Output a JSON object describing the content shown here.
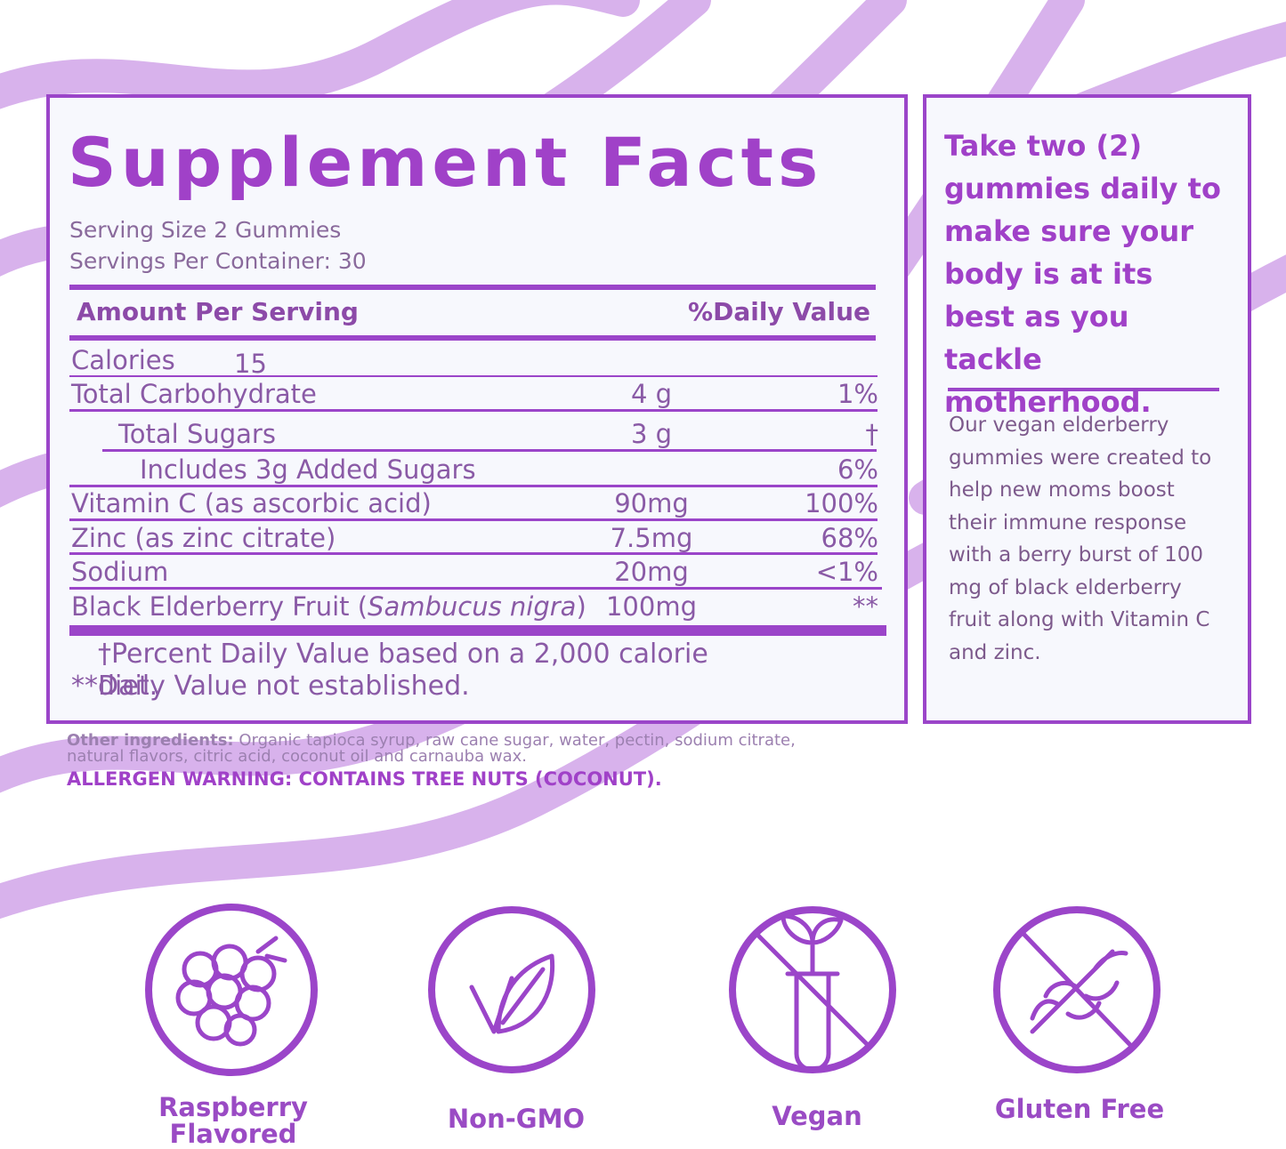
{
  "facts": {
    "title": "Supplement Facts",
    "serving_size": "Serving Size 2 Gummies",
    "servings_per_container": "Servings Per Container: 30",
    "header": {
      "amount": "Amount Per Serving",
      "daily_value": "%Daily Value"
    },
    "rows": [
      {
        "name": "Calories",
        "amount": "15"
      },
      {
        "name": "Total Carbohydrate",
        "amount": "4 g",
        "daily_value": "1%"
      },
      {
        "name": "Total Sugars",
        "amount": "3 g",
        "daily_value": "†"
      },
      {
        "name": "Includes 3g Added Sugars",
        "daily_value": "6%"
      },
      {
        "name": "Vitamin C (as ascorbic acid)",
        "amount": "90mg",
        "daily_value": "100%"
      },
      {
        "name": "Zinc (as zinc citrate)",
        "amount": "7.5mg",
        "daily_value": "68%"
      },
      {
        "name": "Sodium",
        "amount": "20mg",
        "daily_value": "<1%"
      },
      {
        "name": "Black Elderberry Fruit (",
        "latin": "Sambucus nigra",
        "name_end": ")",
        "amount": "100mg",
        "daily_value": "**"
      }
    ],
    "footnotes": [
      "†Percent Daily Value based on a 2,000 calorie diet.",
      "**Daily Value not established."
    ]
  },
  "other_ingredients": {
    "label": "Other ingredients:",
    "text": "Organic tapioca syrup, raw cane sugar, water, pectin, sodium citrate, natural flavors, citric acid, coconut oil and carnauba wax."
  },
  "allergen": "ALLERGEN WARNING: CONTAINS TREE NUTS (COCONUT).",
  "sidebar": {
    "headline": "Take two (2) gummies daily to make sure your body is at its best as you tackle motherhood.",
    "body": "Our vegan elderberry gummies were created to help new moms boost their immune response with a berry burst of 100 mg of black elderberry fruit along with Vitamin C and zinc."
  },
  "badges": [
    "Raspberry Flavored",
    "Non-GMO",
    "Vegan",
    "Gluten Free"
  ]
}
